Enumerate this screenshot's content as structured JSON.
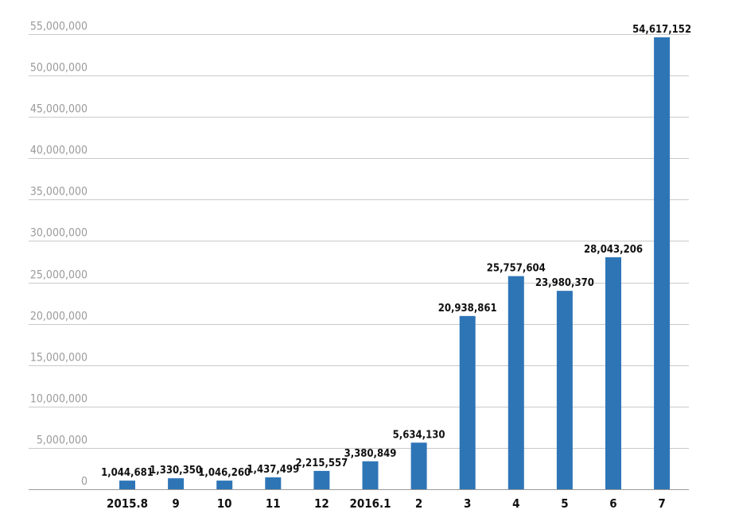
{
  "chart_data": {
    "type": "bar",
    "categories": [
      "2015.8",
      "9",
      "10",
      "11",
      "12",
      "2016.1",
      "2",
      "3",
      "4",
      "5",
      "6",
      "7"
    ],
    "values": [
      1044681,
      1330350,
      1046260,
      1437499,
      2215557,
      3380849,
      5634130,
      20938861,
      25757604,
      23980370,
      28043206,
      54617152
    ],
    "data_labels": [
      "1,044,681",
      "1,330,350",
      "1,046,260",
      "1,437,499",
      "2,215,557",
      "3,380,849",
      "5,634,130",
      "20,938,861",
      "25,757,604",
      "23,980,370",
      "28,043,206",
      "54,617,152"
    ],
    "yticks": [
      0,
      5000000,
      10000000,
      15000000,
      20000000,
      25000000,
      30000000,
      35000000,
      40000000,
      45000000,
      50000000,
      55000000
    ],
    "ytick_labels": [
      "0",
      "5,000,000",
      "10,000,000",
      "15,000,000",
      "20,000,000",
      "25,000,000",
      "30,000,000",
      "35,000,000",
      "40,000,000",
      "45,000,000",
      "50,000,000",
      "55,000,000"
    ],
    "ylim": [
      0,
      55000000
    ],
    "grid": true,
    "bar_color": "#2e75b6",
    "title": "",
    "xlabel": "",
    "ylabel": ""
  }
}
